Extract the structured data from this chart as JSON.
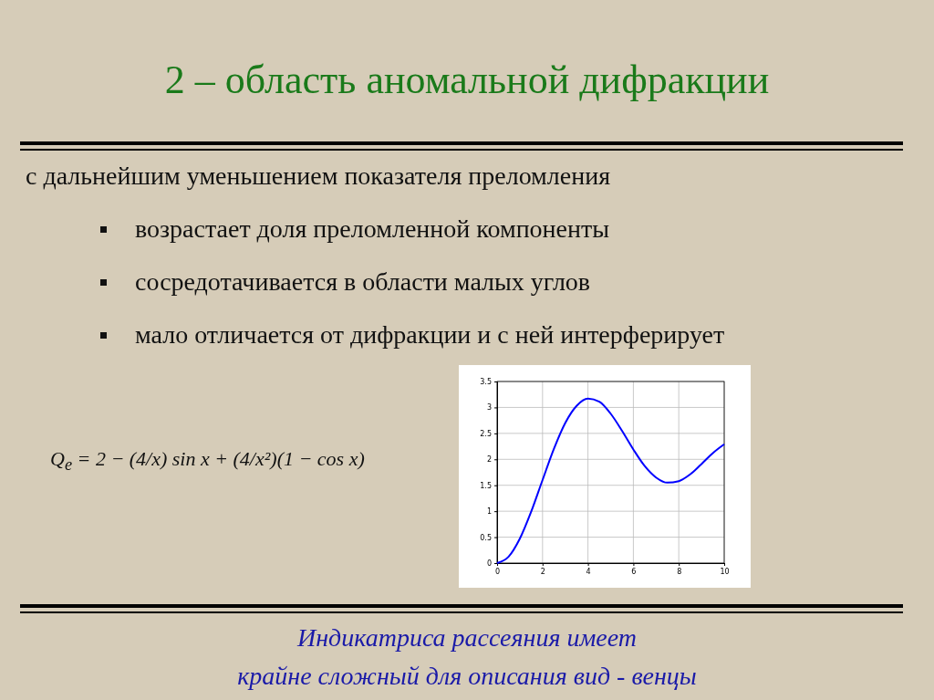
{
  "chart_data": {
    "type": "line",
    "title": "2 – область аномальной дифракции",
    "annotations": [
      "с дальнейшим уменьшением показателя преломления",
      "возрастает доля преломленной компоненты",
      "сосредотачивается в области малых углов",
      "мало отличается от дифракции и с ней интерферирует",
      "Q$_{e}$ = 2 − (4/x) sin x + (4/x²)(1 − cos x)",
      "Индикатриса рассеяния имеет",
      "крайне сложный для описания вид - венцы"
    ],
    "x": [
      0,
      0.5,
      1,
      1.5,
      2,
      2.5,
      3,
      3.5,
      4,
      4.5,
      5,
      5.5,
      6,
      6.5,
      7,
      7.5,
      8,
      8.5,
      9,
      9.5,
      10
    ],
    "series": [
      {
        "color": "#0000ff",
        "values": [
          0,
          0.12,
          0.47,
          0.99,
          1.6,
          2.2,
          2.7,
          3.03,
          3.17,
          3.11,
          2.88,
          2.55,
          2.19,
          1.87,
          1.65,
          1.55,
          1.58,
          1.71,
          1.91,
          2.12,
          2.29
        ]
      }
    ],
    "xlim": [
      0,
      10
    ],
    "xticks": [
      0,
      2,
      4,
      6,
      8,
      10
    ],
    "ylim": [
      0,
      3.5
    ],
    "yticks": [
      0,
      0.5,
      1,
      1.5,
      2,
      2.5,
      3,
      3.5
    ],
    "grid": true,
    "marker": "none",
    "line_style": "solid"
  }
}
